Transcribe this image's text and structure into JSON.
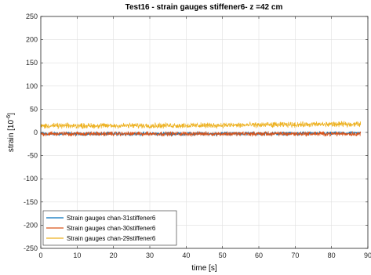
{
  "chart_data": {
    "type": "line",
    "title": "Test16 - strain gauges stiffener6- z =42 cm",
    "xlabel": "time [s]",
    "ylabel": "strain [10",
    "ylabel_exponent": "-6",
    "ylabel_suffix": "]",
    "xlim": [
      0,
      90
    ],
    "ylim": [
      -250,
      250
    ],
    "xticks": [
      "0",
      "10",
      "20",
      "30",
      "40",
      "50",
      "60",
      "70",
      "80",
      "90"
    ],
    "yticks": [
      "-250",
      "-200",
      "-150",
      "-100",
      "-50",
      "0",
      "50",
      "100",
      "150",
      "200",
      "250"
    ],
    "grid": true,
    "legend_position": "bottom-left",
    "x_end": 88,
    "series": [
      {
        "name": "Strain gauges chan-31stiffener6",
        "color": "#0072BD",
        "center": -3,
        "noise": 4,
        "drift": [
          [
            0,
            -3
          ],
          [
            44,
            -3
          ],
          [
            88,
            -2
          ]
        ]
      },
      {
        "name": "Strain gauges chan-30stiffener6",
        "color": "#D95319",
        "center": -3,
        "noise": 5,
        "drift": [
          [
            0,
            -3
          ],
          [
            44,
            -3
          ],
          [
            88,
            -3
          ]
        ]
      },
      {
        "name": "Strain gauges chan-29stiffener6",
        "color": "#EDB120",
        "center": 14,
        "noise": 6,
        "drift": [
          [
            0,
            14
          ],
          [
            44,
            15
          ],
          [
            88,
            18
          ]
        ]
      }
    ]
  }
}
